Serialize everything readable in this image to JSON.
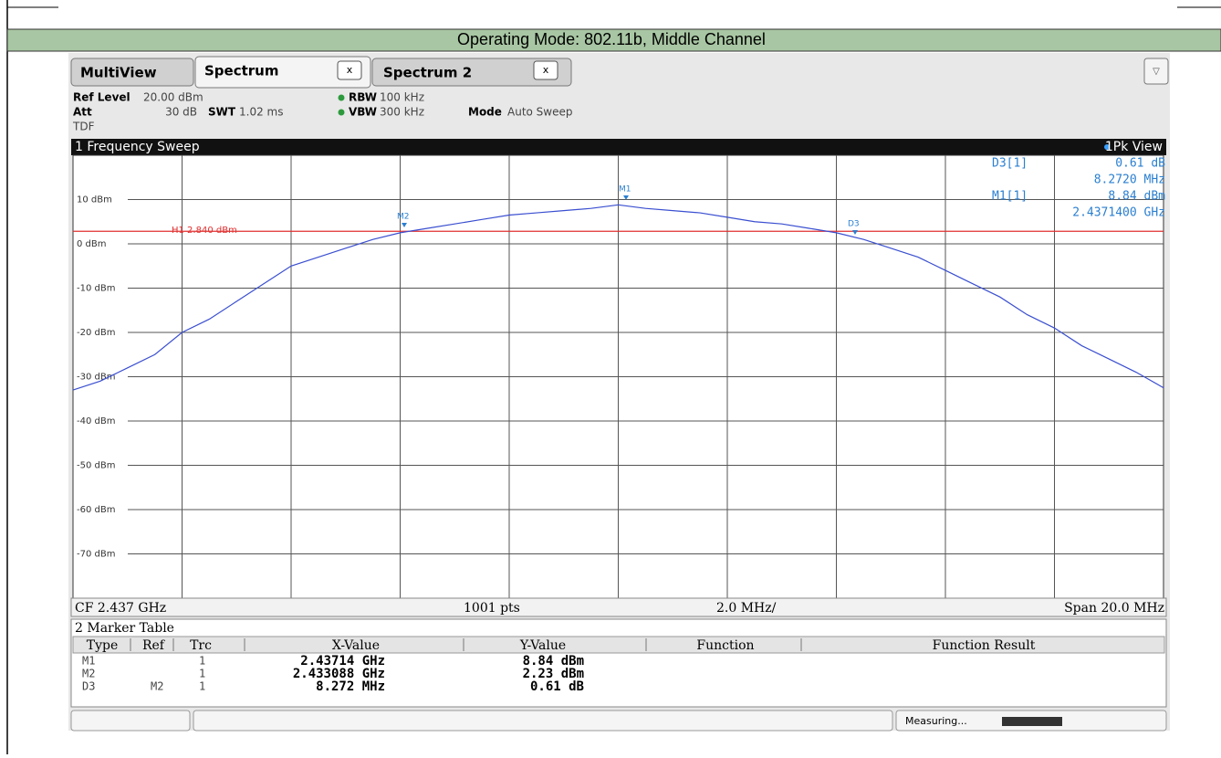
{
  "header": {
    "title": "Operating Mode: 802.11b, Middle Channel"
  },
  "tabs": [
    "MultiView",
    "Spectrum",
    "Spectrum 2"
  ],
  "settings": {
    "ref_level_label": "Ref Level",
    "ref_level": "20.00 dBm",
    "att_label": "Att",
    "att": "30 dB",
    "swt_label": "SWT",
    "swt": "1.02 ms",
    "rbw_label": "RBW",
    "rbw": "100 kHz",
    "vbw_label": "VBW",
    "vbw": "300 kHz",
    "mode_label": "Mode",
    "mode": "Auto Sweep",
    "tdf": "TDF"
  },
  "chart_data": {
    "type": "line",
    "title": "1 Frequency Sweep",
    "view": "1Pk View",
    "ylim": [
      -80,
      20
    ],
    "yticks": [
      {
        "value": 10,
        "label": "10 dBm"
      },
      {
        "value": 0,
        "label": "0 dBm"
      },
      {
        "value": -10,
        "label": "-10 dBm"
      },
      {
        "value": -20,
        "label": "-20 dBm"
      },
      {
        "value": -30,
        "label": "-30 dBm"
      },
      {
        "value": -40,
        "label": "-40 dBm"
      },
      {
        "value": -50,
        "label": "-50 dBm"
      },
      {
        "value": -60,
        "label": "-60 dBm"
      },
      {
        "value": -70,
        "label": "-70 dBm"
      }
    ],
    "grid": true,
    "color": "#3a4fd0",
    "values": [
      -33,
      -31,
      -28,
      -25,
      -20,
      -17,
      -13,
      -9,
      -5,
      -3,
      -1,
      1,
      2.5,
      3.5,
      4.5,
      5.5,
      6.5,
      7,
      7.5,
      8,
      8.8,
      8,
      7.5,
      7,
      6,
      5,
      4.5,
      3.5,
      2.5,
      1,
      -1,
      -3,
      -6,
      -9,
      -12,
      -16,
      -19,
      -23,
      -26,
      -29,
      -32.5
    ],
    "threshold": {
      "label": "H1 2.840 dBm",
      "value": 2.84,
      "color": "#e03030"
    },
    "plot_marker_labels": [
      "M1",
      "M2",
      "D3"
    ],
    "marker_info": [
      [
        "D3[1]",
        "0.61 dB",
        "8.2720 MHz"
      ],
      [
        "M1[1]",
        "8.84 dBm",
        "2.4371400 GHz"
      ]
    ],
    "footer": [
      "CF 2.437 GHz",
      "1001 pts",
      "2.0 MHz/",
      "Span 20.0 MHz"
    ]
  },
  "marker_table": {
    "title": "2 Marker Table",
    "columns": [
      "Type",
      "Ref",
      "Trc",
      "X-Value",
      "Y-Value",
      "Function",
      "Function Result"
    ],
    "rows": [
      [
        "M1",
        "",
        "1",
        "2.43714 GHz",
        "8.84 dBm"
      ],
      [
        "M2",
        "",
        "1",
        "2.433088 GHz",
        "2.23 dBm"
      ],
      [
        "D3",
        "M2",
        "1",
        "8.272 MHz",
        "0.61 dB"
      ]
    ]
  },
  "status": "Measuring..."
}
